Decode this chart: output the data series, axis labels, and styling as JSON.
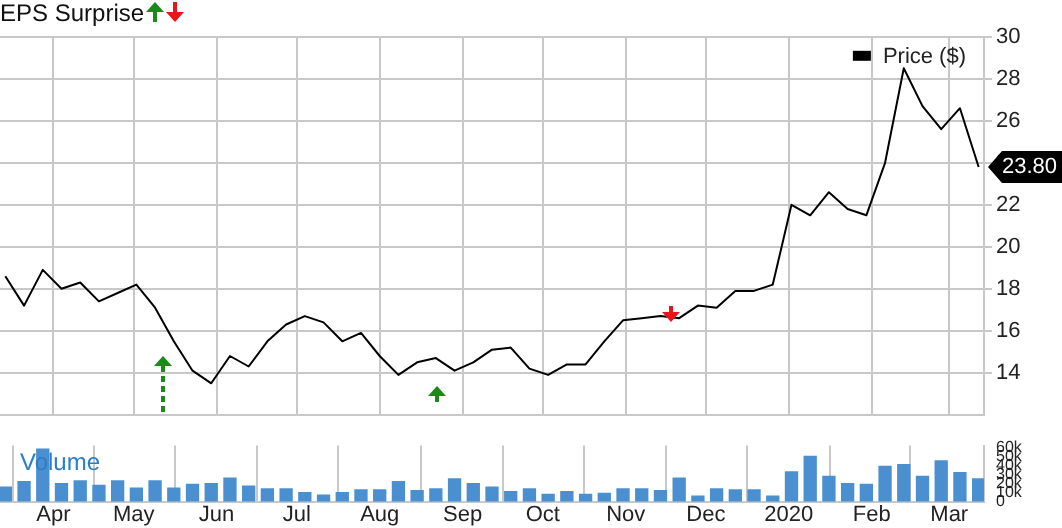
{
  "chart_data": [
    {
      "type": "line",
      "title": "EPS Surprise",
      "x": [
        "2019-03-14",
        "2019-03-21",
        "2019-03-28",
        "2019-04-04",
        "2019-04-11",
        "2019-04-18",
        "2019-04-25",
        "2019-05-02",
        "2019-05-09",
        "2019-05-16",
        "2019-05-23",
        "2019-05-30",
        "2019-06-06",
        "2019-06-13",
        "2019-06-20",
        "2019-06-27",
        "2019-07-04",
        "2019-07-11",
        "2019-07-18",
        "2019-07-25",
        "2019-08-01",
        "2019-08-08",
        "2019-08-15",
        "2019-08-22",
        "2019-08-29",
        "2019-09-05",
        "2019-09-12",
        "2019-09-19",
        "2019-09-26",
        "2019-10-03",
        "2019-10-10",
        "2019-10-17",
        "2019-10-24",
        "2019-10-31",
        "2019-11-07",
        "2019-11-14",
        "2019-11-21",
        "2019-11-28",
        "2019-12-05",
        "2019-12-12",
        "2019-12-19",
        "2019-12-26",
        "2020-01-02",
        "2020-01-09",
        "2020-01-16",
        "2020-01-23",
        "2020-01-30",
        "2020-02-06",
        "2020-02-13",
        "2020-02-20",
        "2020-02-27",
        "2020-03-05",
        "2020-03-12"
      ],
      "series": [
        {
          "name": "Price ($)",
          "color": "#000000",
          "values": [
            18.6,
            17.2,
            18.9,
            18.0,
            18.3,
            17.4,
            17.8,
            18.2,
            17.1,
            15.5,
            14.1,
            13.5,
            14.8,
            14.3,
            15.5,
            16.3,
            16.7,
            16.4,
            15.5,
            15.9,
            14.8,
            13.9,
            14.5,
            14.7,
            14.1,
            14.5,
            15.1,
            15.2,
            14.2,
            13.9,
            14.4,
            14.4,
            15.5,
            16.5,
            16.6,
            16.7,
            16.6,
            17.2,
            17.1,
            17.9,
            17.9,
            18.2,
            22.0,
            21.5,
            22.6,
            21.8,
            21.5,
            24.0,
            28.5,
            26.7,
            25.6,
            26.6,
            23.8
          ]
        }
      ],
      "xlim": [
        "2019-03-12",
        "2020-03-14"
      ],
      "xticks": [
        {
          "value": "2019-04-01",
          "label": null
        },
        {
          "value": "2019-05-01",
          "label": null
        },
        {
          "value": "2019-06-01",
          "label": null
        },
        {
          "value": "2019-07-01",
          "label": null
        },
        {
          "value": "2019-08-01",
          "label": null
        },
        {
          "value": "2019-09-01",
          "label": null
        },
        {
          "value": "2019-10-01",
          "label": null
        },
        {
          "value": "2019-11-01",
          "label": null
        },
        {
          "value": "2019-12-01",
          "label": null
        },
        {
          "value": "2020-01-01",
          "label": null
        },
        {
          "value": "2020-02-01",
          "label": null
        },
        {
          "value": "2020-03-01",
          "label": null
        }
      ],
      "ylim": [
        12,
        30
      ],
      "yticks": [
        14,
        16,
        18,
        20,
        22,
        24,
        26,
        28,
        30
      ],
      "grid": true,
      "legend": "top right",
      "tick_labels": "y",
      "annotations": [
        "23.80"
      ]
    },
    {
      "type": "bar",
      "ylabel": "Volume",
      "color": "#4a90d0",
      "x": [
        "2019-03-14",
        "2019-03-21",
        "2019-03-28",
        "2019-04-04",
        "2019-04-11",
        "2019-04-18",
        "2019-04-25",
        "2019-05-02",
        "2019-05-09",
        "2019-05-16",
        "2019-05-23",
        "2019-05-30",
        "2019-06-06",
        "2019-06-13",
        "2019-06-20",
        "2019-06-27",
        "2019-07-04",
        "2019-07-11",
        "2019-07-18",
        "2019-07-25",
        "2019-08-01",
        "2019-08-08",
        "2019-08-15",
        "2019-08-22",
        "2019-08-29",
        "2019-09-05",
        "2019-09-12",
        "2019-09-19",
        "2019-09-26",
        "2019-10-03",
        "2019-10-10",
        "2019-10-17",
        "2019-10-24",
        "2019-10-31",
        "2019-11-07",
        "2019-11-14",
        "2019-11-21",
        "2019-11-28",
        "2019-12-05",
        "2019-12-12",
        "2019-12-19",
        "2019-12-26",
        "2020-01-02",
        "2020-01-09",
        "2020-01-16",
        "2020-01-23",
        "2020-01-30",
        "2020-02-06",
        "2020-02-13",
        "2020-02-20",
        "2020-02-27",
        "2020-03-05",
        "2020-03-12"
      ],
      "values": [
        16000,
        22000,
        58000,
        20000,
        23000,
        18000,
        23000,
        15000,
        23000,
        15000,
        19000,
        20000,
        26000,
        17000,
        14000,
        14000,
        10000,
        7000,
        10000,
        13000,
        13000,
        22000,
        12000,
        14000,
        25000,
        20000,
        16000,
        11000,
        14000,
        8000,
        11000,
        8000,
        9000,
        14000,
        14000,
        12000,
        26000,
        6000,
        14000,
        13000,
        13000,
        6000,
        33000,
        50000,
        28000,
        20000,
        19000,
        39000,
        41000,
        28000,
        45000,
        32000,
        25000
      ],
      "xlim": [
        "2019-03-12",
        "2020-03-14"
      ],
      "xticks": [
        {
          "value": "2019-04-01",
          "label": "Apr"
        },
        {
          "value": "2019-05-01",
          "label": "May"
        },
        {
          "value": "2019-06-01",
          "label": "Jun"
        },
        {
          "value": "2019-07-01",
          "label": "Jul"
        },
        {
          "value": "2019-08-01",
          "label": "Aug"
        },
        {
          "value": "2019-09-01",
          "label": "Sep"
        },
        {
          "value": "2019-10-01",
          "label": "Oct"
        },
        {
          "value": "2019-11-01",
          "label": "Nov"
        },
        {
          "value": "2019-12-01",
          "label": "Dec"
        },
        {
          "value": "2020-01-01",
          "label": "2020"
        },
        {
          "value": "2020-02-01",
          "label": "Feb"
        },
        {
          "value": "2020-03-01",
          "label": "Mar"
        }
      ],
      "ylim": [
        0,
        62000
      ],
      "yticks": [
        0,
        {
          "value": 10000,
          "label": "10k"
        },
        {
          "value": 20000,
          "label": "20k"
        },
        {
          "value": 30000,
          "label": "30k"
        },
        {
          "value": 40000,
          "label": "40k"
        },
        {
          "value": 50000,
          "label": "50k"
        },
        {
          "value": 60000,
          "label": "60k"
        }
      ],
      "grid": "x"
    }
  ]
}
